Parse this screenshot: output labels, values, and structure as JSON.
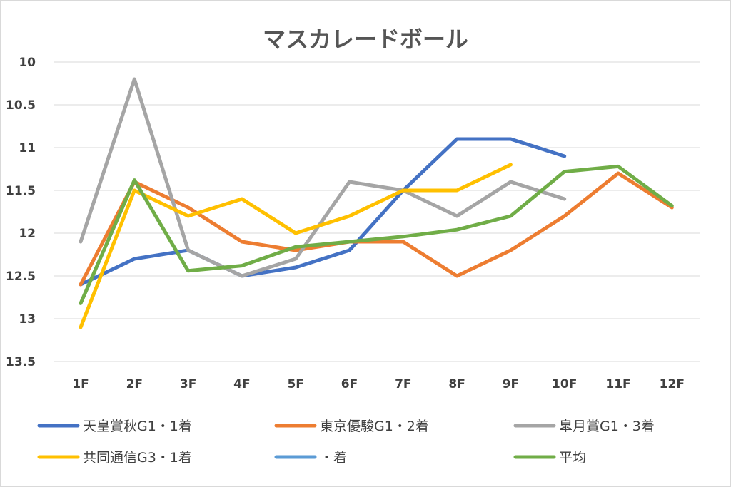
{
  "chart_data": {
    "type": "line",
    "title": "マスカレードボール",
    "xlabel": "",
    "ylabel": "",
    "y_reversed": true,
    "ylim": [
      10,
      13.5
    ],
    "yticks": [
      "10",
      "10.5",
      "11",
      "11.5",
      "12",
      "12.5",
      "13",
      "13.5"
    ],
    "categories": [
      "1F",
      "2F",
      "3F",
      "4F",
      "5F",
      "6F",
      "7F",
      "8F",
      "9F",
      "10F",
      "11F",
      "12F"
    ],
    "grid": true,
    "legend_position": "bottom",
    "series": [
      {
        "name": "天皇賞秋G1・1着",
        "color": "#4472c4",
        "values": [
          12.6,
          12.3,
          12.2,
          12.5,
          12.4,
          12.2,
          11.5,
          10.9,
          10.9,
          11.1,
          null,
          null
        ]
      },
      {
        "name": "東京優駿G1・2着",
        "color": "#ed7d31",
        "values": [
          12.6,
          11.4,
          11.7,
          12.1,
          12.2,
          12.1,
          12.1,
          12.5,
          12.2,
          11.8,
          11.3,
          11.7
        ]
      },
      {
        "name": "皐月賞G1・3着",
        "color": "#a5a5a5",
        "values": [
          12.1,
          10.2,
          12.2,
          12.5,
          12.3,
          11.4,
          11.5,
          11.8,
          11.4,
          11.6,
          null,
          null
        ]
      },
      {
        "name": "共同通信G3・1着",
        "color": "#ffc000",
        "values": [
          13.1,
          11.5,
          11.8,
          11.6,
          12.0,
          11.8,
          11.5,
          11.5,
          11.2,
          null,
          null,
          null
        ]
      },
      {
        "name": "・着",
        "color": "#5b9bd5",
        "values": [
          null,
          null,
          null,
          null,
          null,
          null,
          null,
          null,
          null,
          null,
          null,
          null
        ]
      },
      {
        "name": "平均",
        "color": "#70ad47",
        "values": [
          12.82,
          11.38,
          12.44,
          12.38,
          12.16,
          12.1,
          12.04,
          11.96,
          11.8,
          11.28,
          11.22,
          11.68
        ]
      }
    ]
  }
}
